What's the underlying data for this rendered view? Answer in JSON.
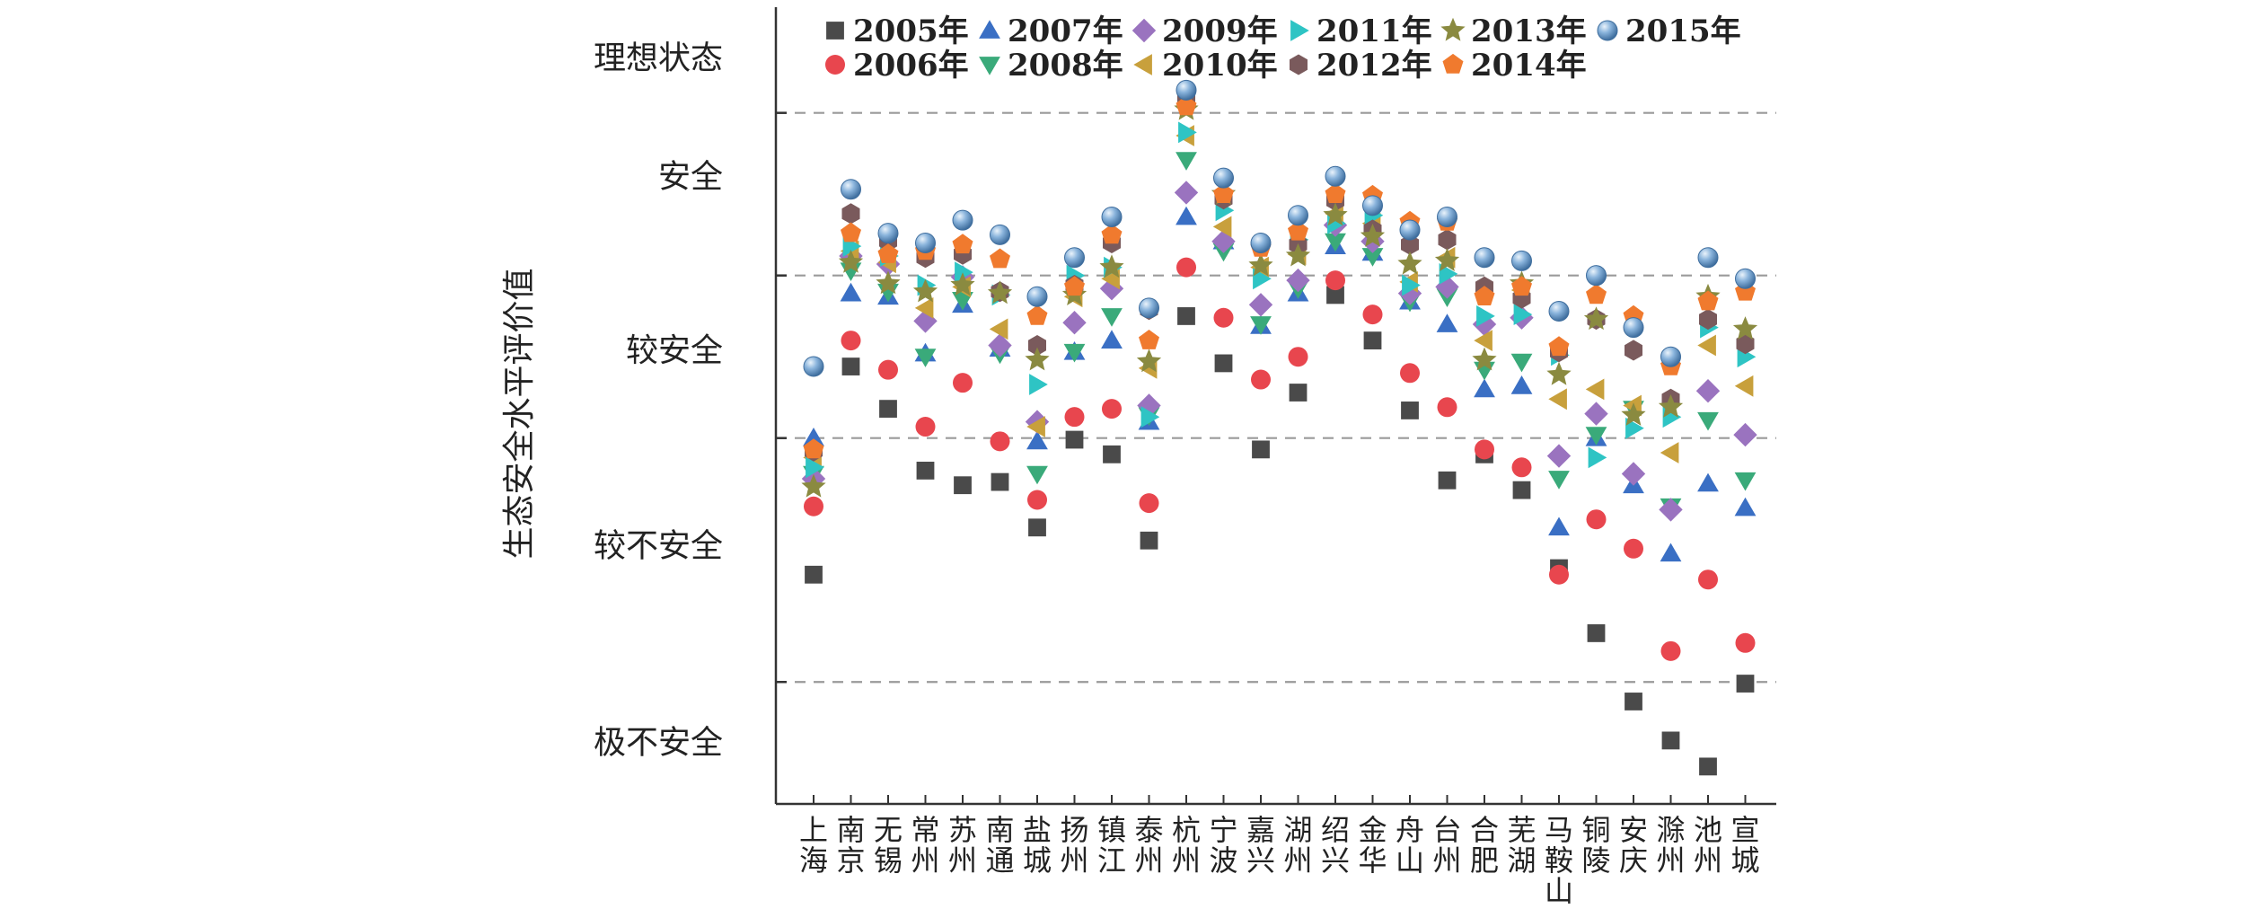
{
  "chart_data": {
    "type": "scatter",
    "ylabel": "生态安全水平评价值",
    "y_categories": [
      "极不安全",
      "较不安全",
      "较安全",
      "安全",
      "理想状态"
    ],
    "x": [
      "上海",
      "南京",
      "无锡",
      "常州",
      "苏州",
      "南通",
      "盐城",
      "扬州",
      "镇江",
      "泰州",
      "杭州",
      "宁波",
      "嘉兴",
      "湖州",
      "绍兴",
      "金华",
      "舟山",
      "台州",
      "合肥",
      "芜湖",
      "马鞍山",
      "铜陵",
      "安庆",
      "滁州",
      "池州",
      "宣城"
    ],
    "ylim": [
      0.25,
      5.15
    ],
    "grid": "horizontal dashed",
    "legend": "top",
    "series": [
      {
        "name": "2005年",
        "marker": "square",
        "color": "#4a4a4a",
        "values": [
          1.66,
          2.94,
          2.68,
          2.3,
          2.21,
          2.23,
          1.95,
          2.49,
          2.4,
          1.87,
          3.25,
          2.96,
          2.43,
          2.78,
          3.38,
          3.1,
          2.67,
          2.24,
          2.4,
          2.18,
          1.7,
          1.3,
          0.88,
          0.64,
          0.48,
          0.99
        ]
      },
      {
        "name": "2006年",
        "marker": "circle",
        "color": "#e8464e",
        "values": [
          2.08,
          3.1,
          2.92,
          2.57,
          2.84,
          2.48,
          2.12,
          2.63,
          2.68,
          2.1,
          3.55,
          3.24,
          2.86,
          3.0,
          3.47,
          3.26,
          2.9,
          2.69,
          2.43,
          2.32,
          1.66,
          2.0,
          1.82,
          1.19,
          1.63,
          1.24
        ]
      },
      {
        "name": "2007年",
        "marker": "triangle-up",
        "color": "#3a6fc4",
        "values": [
          2.5,
          3.39,
          3.37,
          3.02,
          3.32,
          3.05,
          2.48,
          3.03,
          3.1,
          2.6,
          3.86,
          3.71,
          3.19,
          3.39,
          3.68,
          3.64,
          3.34,
          3.2,
          2.8,
          2.82,
          1.95,
          2.5,
          2.21,
          1.79,
          2.22,
          2.07
        ]
      },
      {
        "name": "2008年",
        "marker": "triangle-down",
        "color": "#3aaa7a",
        "values": [
          2.28,
          3.53,
          3.4,
          3.0,
          3.35,
          3.02,
          2.28,
          3.03,
          3.25,
          2.64,
          4.21,
          3.65,
          3.2,
          3.42,
          3.71,
          3.62,
          3.34,
          3.37,
          2.92,
          2.97,
          2.25,
          2.52,
          2.68,
          2.08,
          2.61,
          2.24
        ]
      },
      {
        "name": "2009年",
        "marker": "diamond",
        "color": "#9a73bf",
        "values": [
          2.25,
          3.62,
          3.57,
          3.22,
          3.49,
          3.07,
          2.6,
          3.21,
          3.42,
          2.7,
          4.01,
          3.71,
          3.32,
          3.47,
          3.81,
          3.71,
          3.39,
          3.43,
          3.2,
          3.24,
          2.39,
          2.65,
          2.28,
          2.06,
          2.79,
          2.52
        ]
      },
      {
        "name": "2010年",
        "marker": "triangle-left",
        "color": "#c8a03c",
        "values": [
          2.38,
          3.65,
          3.58,
          3.3,
          3.43,
          3.17,
          2.57,
          3.37,
          3.48,
          2.93,
          4.36,
          3.8,
          3.55,
          3.63,
          3.88,
          3.82,
          3.46,
          3.61,
          3.1,
          3.41,
          2.74,
          2.8,
          2.7,
          2.41,
          3.07,
          2.82
        ]
      },
      {
        "name": "2011年",
        "marker": "triangle-right",
        "color": "#2ec4c4",
        "values": [
          2.32,
          3.68,
          3.62,
          3.44,
          3.52,
          3.38,
          2.83,
          3.5,
          3.55,
          2.63,
          4.38,
          3.9,
          3.48,
          3.72,
          3.82,
          3.87,
          3.44,
          3.51,
          3.25,
          3.26,
          3.01,
          2.38,
          2.56,
          2.63,
          3.18,
          3.0
        ]
      },
      {
        "name": "2012年",
        "marker": "hexagon",
        "color": "#7a5a5c",
        "values": [
          2.42,
          3.88,
          3.71,
          3.61,
          3.63,
          3.4,
          3.07,
          3.44,
          3.7,
          3.29,
          4.59,
          3.97,
          3.7,
          3.69,
          3.96,
          3.78,
          3.69,
          3.72,
          3.43,
          3.36,
          3.03,
          3.23,
          3.04,
          2.74,
          3.23,
          3.08
        ]
      },
      {
        "name": "2013年",
        "marker": "star",
        "color": "#8a8a40",
        "values": [
          2.2,
          3.58,
          3.45,
          3.4,
          3.44,
          3.39,
          2.98,
          3.38,
          3.55,
          2.97,
          4.52,
          4.0,
          3.56,
          3.62,
          3.87,
          3.74,
          3.57,
          3.59,
          2.98,
          3.45,
          2.89,
          3.23,
          2.64,
          2.69,
          3.37,
          3.17
        ]
      },
      {
        "name": "2014年",
        "marker": "pentagon",
        "color": "#f07a2e",
        "values": [
          2.43,
          3.76,
          3.63,
          3.65,
          3.69,
          3.6,
          3.25,
          3.43,
          3.75,
          3.1,
          4.54,
          4.0,
          3.67,
          3.77,
          4.0,
          3.99,
          3.83,
          3.83,
          3.37,
          3.43,
          3.06,
          3.38,
          3.25,
          2.94,
          3.34,
          3.4
        ]
      },
      {
        "name": "2015年",
        "marker": "sphere",
        "color": "#6e9ccc",
        "values": [
          2.94,
          4.03,
          3.76,
          3.7,
          3.84,
          3.75,
          3.37,
          3.61,
          3.86,
          3.3,
          4.64,
          4.1,
          3.7,
          3.87,
          4.11,
          3.93,
          3.78,
          3.86,
          3.61,
          3.59,
          3.28,
          3.5,
          3.18,
          3.0,
          3.61,
          3.48
        ]
      }
    ]
  }
}
